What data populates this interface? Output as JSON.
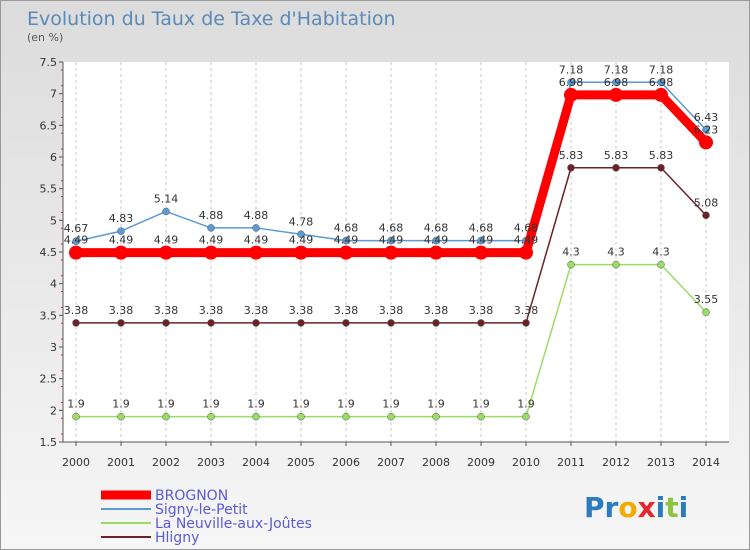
{
  "chart_data": {
    "type": "line",
    "title": "Evolution du Taux de Taxe d'Habitation",
    "unit_label": "(en %)",
    "x": [
      "2000",
      "2001",
      "2002",
      "2003",
      "2004",
      "2005",
      "2006",
      "2007",
      "2008",
      "2009",
      "2010",
      "2011",
      "2012",
      "2013",
      "2014"
    ],
    "ylim": [
      1.5,
      7.5
    ],
    "yticks": [
      "1.5",
      "2",
      "2.5",
      "3",
      "3.5",
      "4",
      "4.5",
      "5",
      "5.5",
      "6",
      "6.5",
      "7",
      "7.5"
    ],
    "grid": "vertical",
    "legend_position": "bottom-left",
    "series": [
      {
        "name": "BROGNON",
        "color": "#ff0000",
        "values": [
          4.49,
          4.49,
          4.49,
          4.49,
          4.49,
          4.49,
          4.49,
          4.49,
          4.49,
          4.49,
          4.49,
          6.98,
          6.98,
          6.98,
          6.23
        ],
        "labels": [
          "4.49",
          "4.49",
          "4.49",
          "4.49",
          "4.49",
          "4.49",
          "4.49",
          "4.49",
          "4.49",
          "4.49",
          "4.49",
          "6.98",
          "6.98",
          "6.98",
          "6.23"
        ]
      },
      {
        "name": "Signy-le-Petit",
        "color": "#5b9bd5",
        "values": [
          4.67,
          4.83,
          5.14,
          4.88,
          4.88,
          4.78,
          4.68,
          4.68,
          4.68,
          4.68,
          4.68,
          7.18,
          7.18,
          7.18,
          6.43
        ],
        "labels": [
          "4.67",
          "4.83",
          "5.14",
          "4.88",
          "4.88",
          "4.78",
          "4.68",
          "4.68",
          "4.68",
          "4.68",
          "4.68",
          "7.18",
          "7.18",
          "7.18",
          "6.43"
        ]
      },
      {
        "name": "La Neuville-aux-Joûtes",
        "color": "#99dd66",
        "values": [
          1.9,
          1.9,
          1.9,
          1.9,
          1.9,
          1.9,
          1.9,
          1.9,
          1.9,
          1.9,
          1.9,
          4.3,
          4.3,
          4.3,
          3.55
        ],
        "labels": [
          "1.9",
          "1.9",
          "1.9",
          "1.9",
          "1.9",
          "1.9",
          "1.9",
          "1.9",
          "1.9",
          "1.9",
          "1.9",
          "4.3",
          "4.3",
          "4.3",
          "3.55"
        ]
      },
      {
        "name": "Hligny",
        "color": "#6b2226",
        "values": [
          3.38,
          3.38,
          3.38,
          3.38,
          3.38,
          3.38,
          3.38,
          3.38,
          3.38,
          3.38,
          3.38,
          5.83,
          5.83,
          5.83,
          5.08
        ],
        "labels": [
          "3.38",
          "3.38",
          "3.38",
          "3.38",
          "3.38",
          "3.38",
          "3.38",
          "3.38",
          "3.38",
          "3.38",
          "3.38",
          "5.83",
          "5.83",
          "5.83",
          "5.08"
        ]
      }
    ]
  },
  "logo": {
    "p": "Pr",
    "o": "o",
    "x": "x",
    "i": "i",
    "t": "t",
    "i2": "i"
  }
}
